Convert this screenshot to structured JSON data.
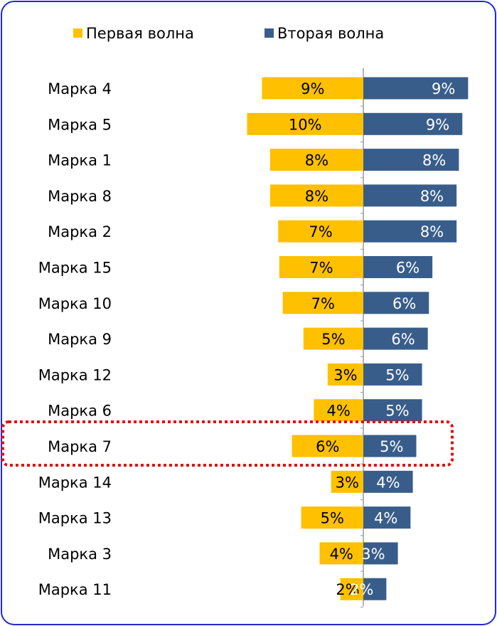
{
  "chart_data": {
    "type": "butterfly-bar",
    "categories": [
      "Марка 4",
      "Марка 5",
      "Марка 1",
      "Марка 8",
      "Марка 2",
      "Марка 15",
      "Марка 10",
      "Марка 9",
      "Марка 12",
      "Марка 6",
      "Марка 7",
      "Марка 14",
      "Марка 13",
      "Марка 3",
      "Марка 11"
    ],
    "xlim": [
      0,
      10.5
    ],
    "series": [
      {
        "name": "Первая волна",
        "color": "#FFC000",
        "side": "left",
        "values": [
          8.8,
          10.1,
          8.1,
          8.1,
          7.4,
          7.3,
          7.0,
          5.2,
          3.1,
          4.3,
          6.2,
          2.8,
          5.4,
          3.8,
          2.0
        ],
        "value_labels": [
          "9%",
          "10%",
          "8%",
          "8%",
          "7%",
          "7%",
          "7%",
          "5%",
          "3%",
          "4%",
          "6%",
          "3%",
          "5%",
          "4%",
          "2%"
        ]
      },
      {
        "name": "Вторая волна",
        "color": "#385D8A",
        "side": "right",
        "values": [
          9.1,
          8.6,
          8.3,
          8.1,
          8.1,
          6.0,
          5.7,
          5.6,
          5.1,
          5.1,
          4.6,
          4.3,
          4.1,
          3.0,
          2.0
        ],
        "value_labels": [
          "9%",
          "9%",
          "8%",
          "8%",
          "8%",
          "6%",
          "6%",
          "6%",
          "5%",
          "5%",
          "5%",
          "4%",
          "4%",
          "3%",
          "2%"
        ]
      }
    ]
  }
}
